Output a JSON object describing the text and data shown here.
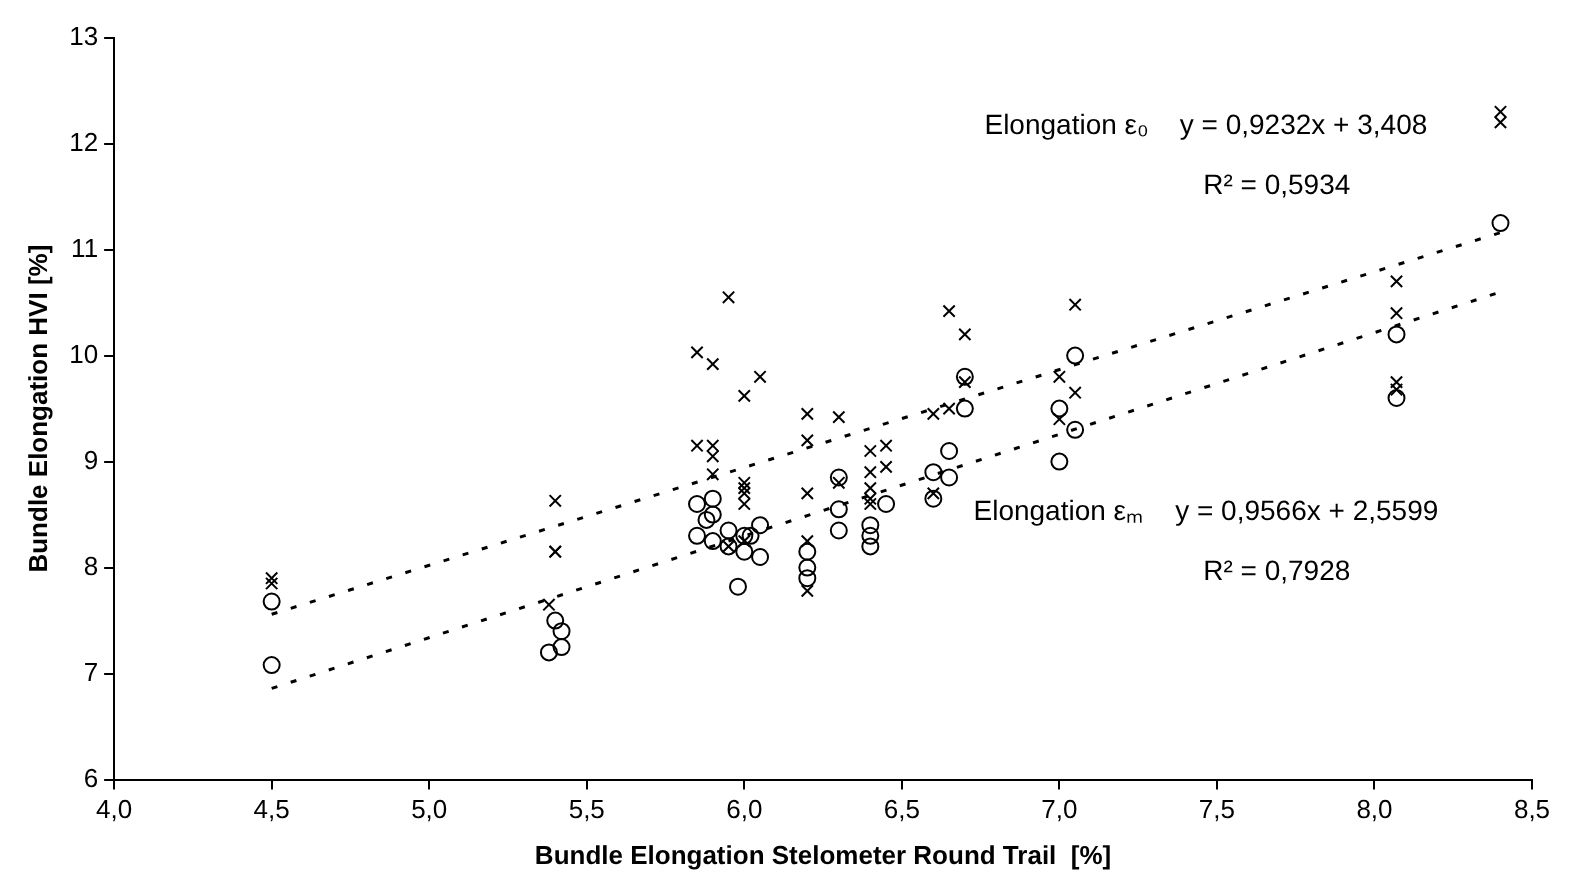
{
  "chart_data": {
    "type": "scatter",
    "xlabel": "Bundle Elongation Stelometer Round Trail  [%]",
    "ylabel": "Bundle Elongation HVI [%]",
    "xlim": [
      4,
      8.5
    ],
    "xticks": [
      {
        "value": 4,
        "label": "4,0"
      },
      {
        "value": 4.5,
        "label": "4,5"
      },
      {
        "value": 5,
        "label": "5,0"
      },
      {
        "value": 5.5,
        "label": "5,5"
      },
      {
        "value": 6,
        "label": "6,0"
      },
      {
        "value": 6.5,
        "label": "6,5"
      },
      {
        "value": 7,
        "label": "7,0"
      },
      {
        "value": 7.5,
        "label": "7,5"
      },
      {
        "value": 8,
        "label": "8,0"
      },
      {
        "value": 8.5,
        "label": "8,5"
      }
    ],
    "ylim": [
      6,
      13
    ],
    "yticks": [
      6,
      7,
      8,
      9,
      10,
      11,
      12,
      13
    ],
    "grid": false,
    "legend": false,
    "series": [
      {
        "type": "scatter",
        "marker": "cross",
        "color": "#000000",
        "x": [
          4.5,
          4.5,
          5.4,
          5.4,
          5.4,
          5.38,
          5.85,
          5.85,
          5.9,
          5.9,
          5.9,
          5.9,
          5.95,
          6.0,
          6.05,
          6.0,
          6.0,
          6.0,
          6.0,
          6.0,
          5.95,
          6.2,
          6.2,
          6.2,
          6.2,
          6.2,
          6.3,
          6.3,
          6.4,
          6.4,
          6.4,
          6.4,
          6.4,
          6.45,
          6.45,
          6.6,
          6.6,
          6.65,
          6.65,
          6.7,
          6.7,
          7.0,
          7.0,
          7.05,
          7.05,
          8.07,
          8.07,
          8.07,
          8.07,
          8.4,
          8.4
        ],
        "values": [
          7.9,
          7.85,
          8.63,
          8.15,
          8.15,
          7.65,
          10.03,
          9.15,
          9.92,
          9.15,
          9.05,
          8.88,
          10.55,
          9.62,
          9.8,
          8.8,
          8.75,
          8.7,
          8.6,
          8.25,
          8.2,
          9.45,
          9.2,
          8.7,
          8.25,
          7.78,
          9.42,
          8.8,
          9.1,
          8.9,
          8.75,
          8.65,
          8.6,
          9.15,
          8.95,
          9.45,
          8.7,
          10.42,
          9.5,
          10.2,
          9.75,
          9.8,
          9.4,
          10.48,
          9.65,
          10.7,
          10.4,
          9.75,
          9.68,
          12.3,
          12.2
        ]
      },
      {
        "type": "scatter",
        "marker": "circle",
        "color": "#000000",
        "x": [
          4.5,
          4.5,
          5.4,
          5.42,
          5.42,
          5.38,
          5.85,
          5.85,
          5.9,
          5.9,
          5.9,
          5.88,
          5.95,
          5.95,
          6.0,
          6.0,
          5.98,
          6.02,
          6.05,
          6.05,
          6.2,
          6.2,
          6.2,
          6.3,
          6.3,
          6.3,
          6.4,
          6.4,
          6.4,
          6.45,
          6.6,
          6.6,
          6.65,
          6.65,
          6.7,
          6.7,
          7.0,
          7.0,
          7.05,
          7.05,
          8.07,
          8.07,
          8.4
        ],
        "values": [
          7.68,
          7.08,
          7.5,
          7.4,
          7.25,
          7.2,
          8.6,
          8.3,
          8.65,
          8.5,
          8.25,
          8.45,
          8.35,
          8.2,
          8.3,
          8.15,
          7.82,
          8.3,
          8.4,
          8.1,
          8.15,
          8.0,
          7.9,
          8.85,
          8.55,
          8.35,
          8.4,
          8.3,
          8.2,
          8.6,
          8.9,
          8.65,
          9.1,
          8.85,
          9.8,
          9.5,
          9.5,
          9.0,
          10.0,
          9.3,
          10.2,
          9.6,
          11.25
        ]
      },
      {
        "type": "line",
        "marker": "none",
        "line_style": "dashed",
        "color": "#000000",
        "x": [
          4.5,
          8.4
        ],
        "values": [
          7.56,
          11.16
        ]
      },
      {
        "type": "line",
        "marker": "none",
        "line_style": "dashed",
        "color": "#000000",
        "x": [
          4.5,
          8.4
        ],
        "values": [
          6.86,
          10.6
        ]
      }
    ],
    "annotations": [
      "Elongation ε₀    y = 0,9232x + 3,408",
      "R² = 0,5934",
      "Elongation εₘ    y = 0,9566x + 2,5599",
      "R² = 0,7928"
    ]
  }
}
